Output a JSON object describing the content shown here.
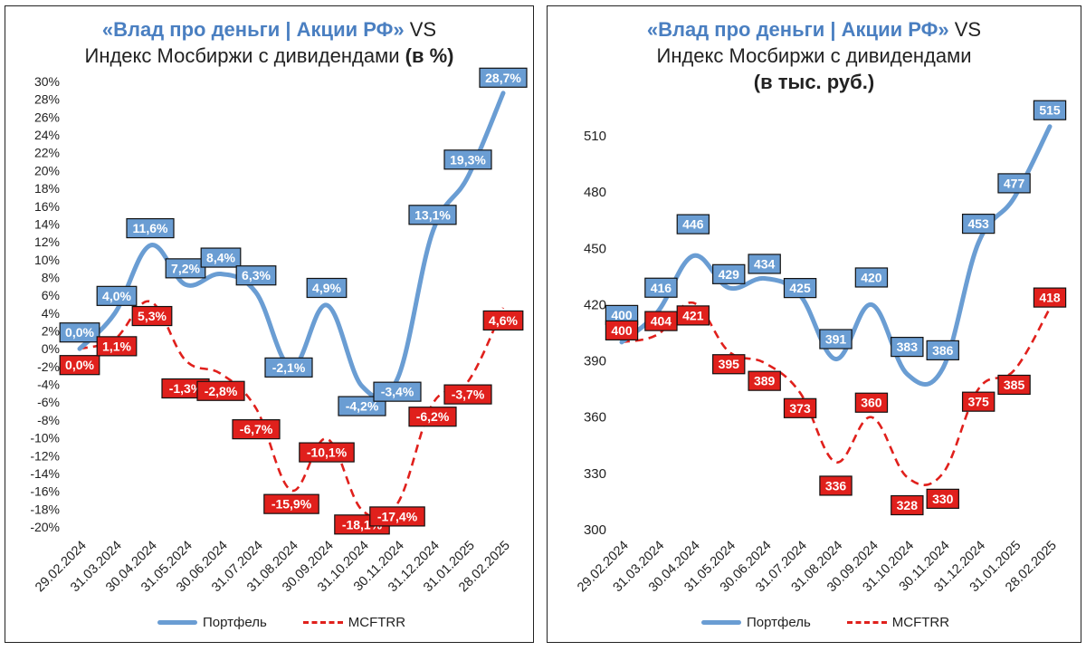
{
  "charts": [
    {
      "title_brand": "«Влад про деньги | Акции РФ»",
      "title_vs": " VS",
      "title_line2": "Индекс Мосбиржи с дивидендами",
      "title_unit": "(в %)",
      "legend": [
        "Портфель",
        "MCFTRR"
      ]
    },
    {
      "title_brand": "«Влад про деньги | Акции РФ»",
      "title_vs": " VS",
      "title_line2": "Индекс Мосбиржи с дивидендами",
      "title_unit": "(в тыс. руб.)",
      "legend": [
        "Портфель",
        "MCFTRR"
      ]
    }
  ],
  "colors": {
    "portfolio": "#6a9dd3",
    "portfolio_label_bg": "#6a9dd3",
    "mcftrr": "#e0201c",
    "mcftrr_label_bg": "#e0201c"
  },
  "chart_data": [
    {
      "type": "line",
      "categories": [
        "29.02.2024",
        "31.03.2024",
        "30.04.2024",
        "31.05.2024",
        "30.06.2024",
        "31.07.2024",
        "31.08.2024",
        "30.09.2024",
        "31.10.2024",
        "30.11.2024",
        "31.12.2024",
        "31.01.2025",
        "28.02.2025"
      ],
      "series": [
        {
          "name": "Портфель",
          "values": [
            0.0,
            4.0,
            11.6,
            7.2,
            8.4,
            6.3,
            -2.1,
            4.9,
            -4.2,
            -3.4,
            13.1,
            19.3,
            28.7
          ],
          "labels": [
            "0,0%",
            "4,0%",
            "11,6%",
            "7,2%",
            "8,4%",
            "6,3%",
            "-2,1%",
            "4,9%",
            "-4,2%",
            "-3,4%",
            "13,1%",
            "19,3%",
            "28,7%"
          ]
        },
        {
          "name": "MCFTRR",
          "values": [
            0.0,
            1.1,
            5.3,
            -1.3,
            -2.8,
            -6.7,
            -15.9,
            -10.1,
            -18.1,
            -17.4,
            -6.2,
            -3.7,
            4.6
          ],
          "labels": [
            "0,0%",
            "1,1%",
            "5,3%",
            "-1,3%",
            "-2,8%",
            "-6,7%",
            "-15,9%",
            "-10,1%",
            "-18,1%",
            "-17,4%",
            "-6,2%",
            "-3,7%",
            "4,6%"
          ]
        }
      ],
      "ylim": [
        -20,
        30
      ],
      "yticks": [
        "-20%",
        "-18%",
        "-16%",
        "-14%",
        "-12%",
        "-10%",
        "-8%",
        "-6%",
        "-4%",
        "-2%",
        "0%",
        "2%",
        "4%",
        "6%",
        "8%",
        "10%",
        "12%",
        "14%",
        "16%",
        "18%",
        "20%",
        "22%",
        "24%",
        "26%",
        "28%",
        "30%"
      ],
      "grid": false,
      "legend_position": "bottom"
    },
    {
      "type": "line",
      "categories": [
        "29.02.2024",
        "31.03.2024",
        "30.04.2024",
        "31.05.2024",
        "30.06.2024",
        "31.07.2024",
        "31.08.2024",
        "30.09.2024",
        "31.10.2024",
        "30.11.2024",
        "31.12.2024",
        "31.01.2025",
        "28.02.2025"
      ],
      "series": [
        {
          "name": "Портфель",
          "values": [
            400,
            416,
            446,
            429,
            434,
            425,
            391,
            420,
            383,
            386,
            453,
            477,
            515
          ],
          "labels": [
            "400",
            "416",
            "446",
            "429",
            "434",
            "425",
            "391",
            "420",
            "383",
            "386",
            "453",
            "477",
            "515"
          ]
        },
        {
          "name": "MCFTRR",
          "values": [
            400,
            404,
            421,
            395,
            389,
            373,
            336,
            360,
            328,
            330,
            375,
            385,
            418
          ],
          "labels": [
            "400",
            "404",
            "421",
            "395",
            "389",
            "373",
            "336",
            "360",
            "328",
            "330",
            "375",
            "385",
            "418"
          ]
        }
      ],
      "ylim": [
        300,
        525
      ],
      "yticks": [
        "300",
        "330",
        "360",
        "390",
        "420",
        "450",
        "480",
        "510"
      ],
      "grid": false,
      "legend_position": "bottom"
    }
  ]
}
